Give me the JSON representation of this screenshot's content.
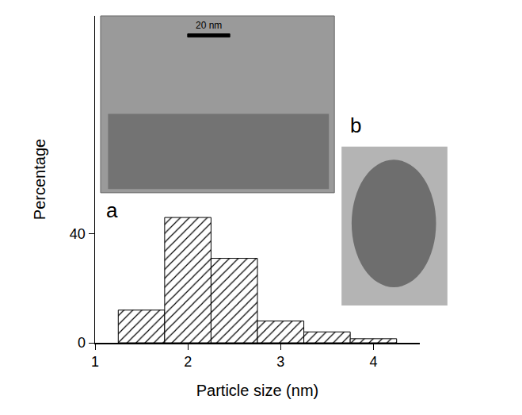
{
  "chart_data": {
    "type": "histogram",
    "x_label": "Particle size (nm)",
    "y_label": "Percentage",
    "bins": [
      1.25,
      1.75,
      2.25,
      2.75,
      3.25,
      3.75,
      4.25
    ],
    "values": [
      12,
      46,
      31,
      8,
      4,
      1.5
    ],
    "color": "#ffffff",
    "marker": "hatch",
    "xlim": [
      1,
      4.5
    ],
    "xticks": [
      1,
      2,
      3,
      4
    ],
    "ylim": [
      0,
      120
    ],
    "yticks": [
      0,
      40
    ],
    "grid": false,
    "annotations": [
      "a",
      "b",
      "20 nm"
    ]
  }
}
